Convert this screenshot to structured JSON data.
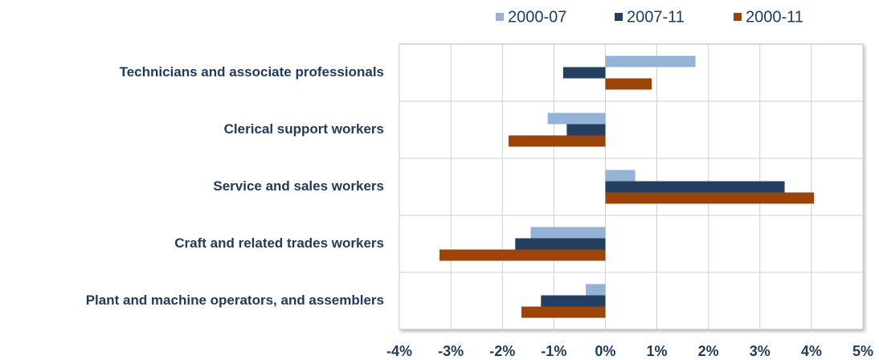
{
  "chart_data": {
    "type": "hbar",
    "categories": [
      "Technicians and associate professionals",
      "Clerical support workers",
      "Service and sales workers",
      "Craft and related trades workers",
      "Plant and machine operators, and assemblers"
    ],
    "series": [
      {
        "name": "2000-07",
        "color": "#95b3d7",
        "values": [
          1.75,
          -1.12,
          0.58,
          -1.45,
          -0.38
        ]
      },
      {
        "name": "2007-11",
        "color": "#243f60",
        "values": [
          -0.82,
          -0.75,
          3.48,
          -1.75,
          -1.25
        ]
      },
      {
        "name": "2000-11",
        "color": "#9c430a",
        "values": [
          0.9,
          -1.88,
          4.05,
          -3.22,
          -1.63
        ]
      }
    ],
    "xlim": [
      -4,
      5
    ],
    "xticks": [
      {
        "value": -4,
        "label": "-4%"
      },
      {
        "value": -3,
        "label": "-3%"
      },
      {
        "value": -2,
        "label": "-2%"
      },
      {
        "value": -1,
        "label": "-1%"
      },
      {
        "value": 0,
        "label": "0%"
      },
      {
        "value": 1,
        "label": "1%"
      },
      {
        "value": 2,
        "label": "2%"
      },
      {
        "value": 3,
        "label": "3%"
      },
      {
        "value": 4,
        "label": "4%"
      },
      {
        "value": 5,
        "label": "5%"
      }
    ],
    "grid": true,
    "legend": "top"
  }
}
